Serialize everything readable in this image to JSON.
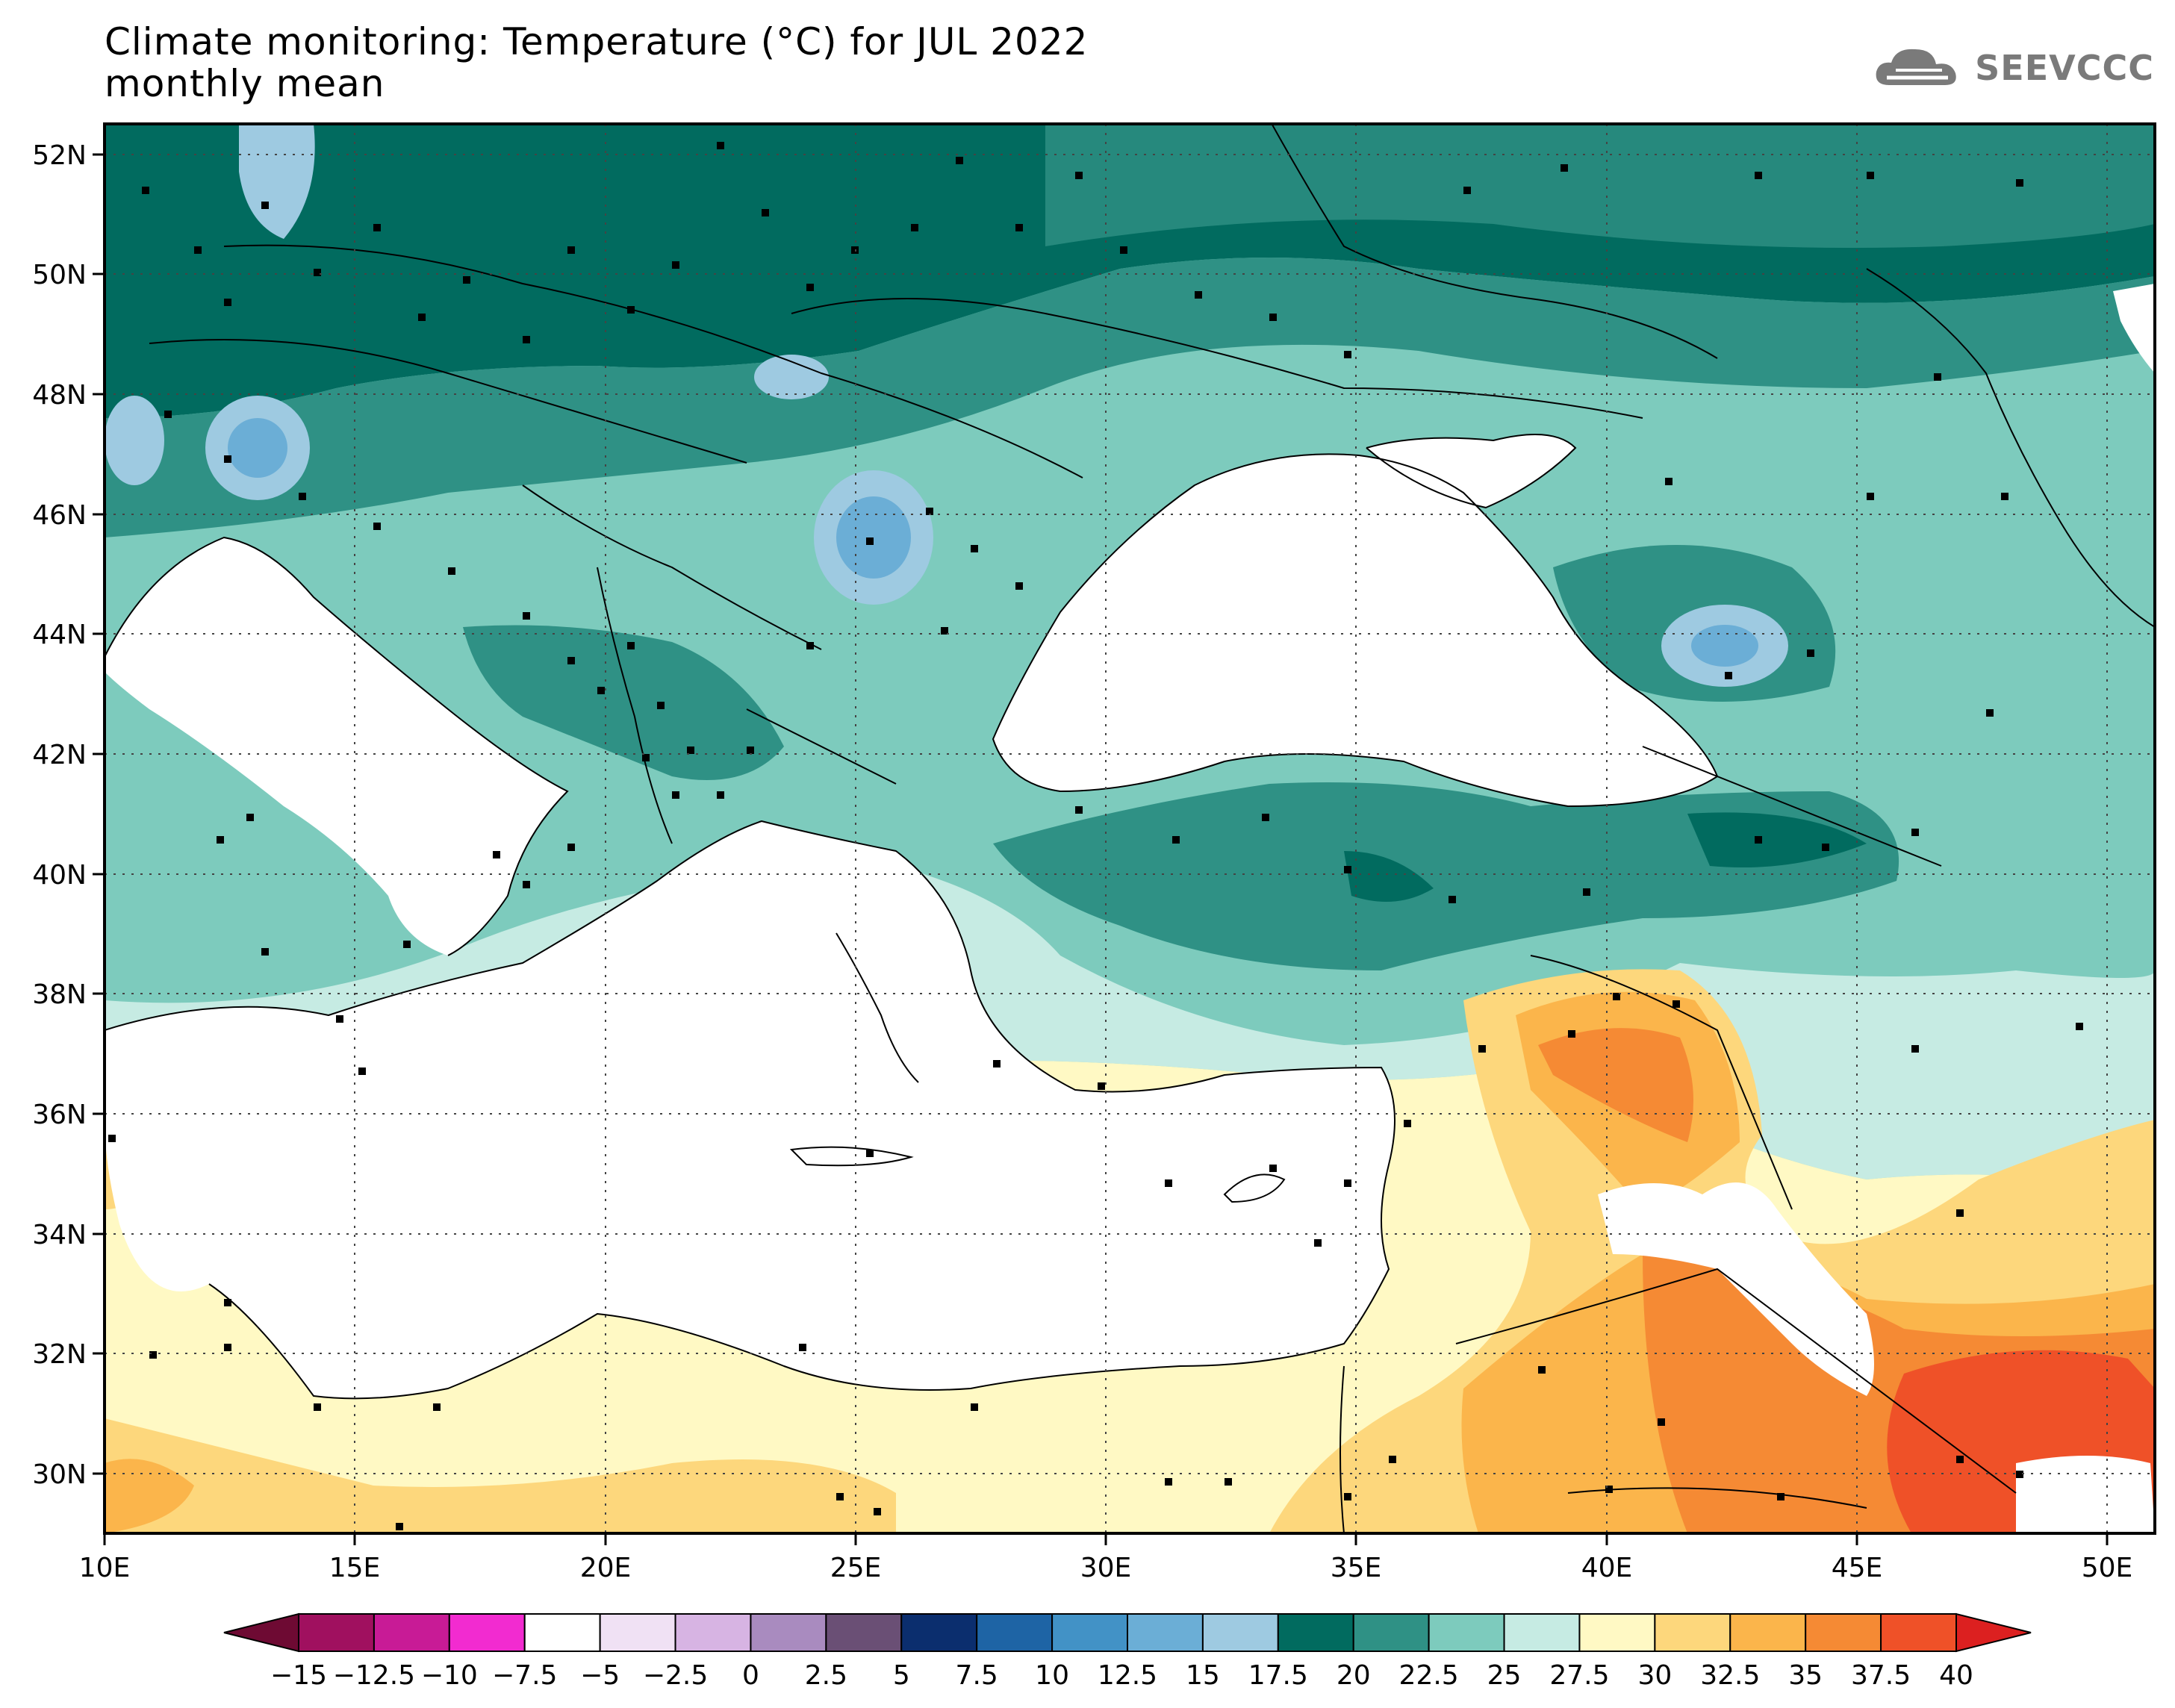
{
  "title": {
    "line1": "Climate monitoring: Temperature (°C) for JUL 2022",
    "line2": "monthly mean"
  },
  "logo": {
    "text": "SEEVCCC",
    "icon": "cloud-icon",
    "color": "#7a7a7a"
  },
  "map": {
    "lon_range": [
      10,
      51
    ],
    "lat_range": [
      29,
      52.5
    ],
    "lon_ticks": [
      "10E",
      "15E",
      "20E",
      "25E",
      "30E",
      "35E",
      "40E",
      "45E",
      "50E"
    ],
    "lat_ticks": [
      "52N",
      "50N",
      "48N",
      "46N",
      "44N",
      "42N",
      "40N",
      "38N",
      "36N",
      "34N",
      "32N",
      "30N"
    ]
  },
  "colorbar": {
    "labels": [
      "−15",
      "−12.5",
      "−10",
      "−7.5",
      "−5",
      "−2.5",
      "0",
      "2.5",
      "5",
      "7.5",
      "10",
      "12.5",
      "15",
      "17.5",
      "20",
      "22.5",
      "25",
      "27.5",
      "30",
      "32.5",
      "35",
      "37.5",
      "40"
    ],
    "colors": [
      "#6e0a33",
      "#a0105f",
      "#c81b96",
      "#f22bd0",
      "#ffffff",
      "#f0e1f4",
      "#d7b4e3",
      "#a98bbf",
      "#6a4f75",
      "#0b2e6e",
      "#1e64a5",
      "#4292c6",
      "#6baed6",
      "#9ecae1",
      "#016b5f",
      "#2f9185",
      "#7dcbbd",
      "#c6ebe3",
      "#fff9c4",
      "#fdd77c",
      "#fbb54b",
      "#f58a34",
      "#ef5128",
      "#dc2020"
    ]
  }
}
